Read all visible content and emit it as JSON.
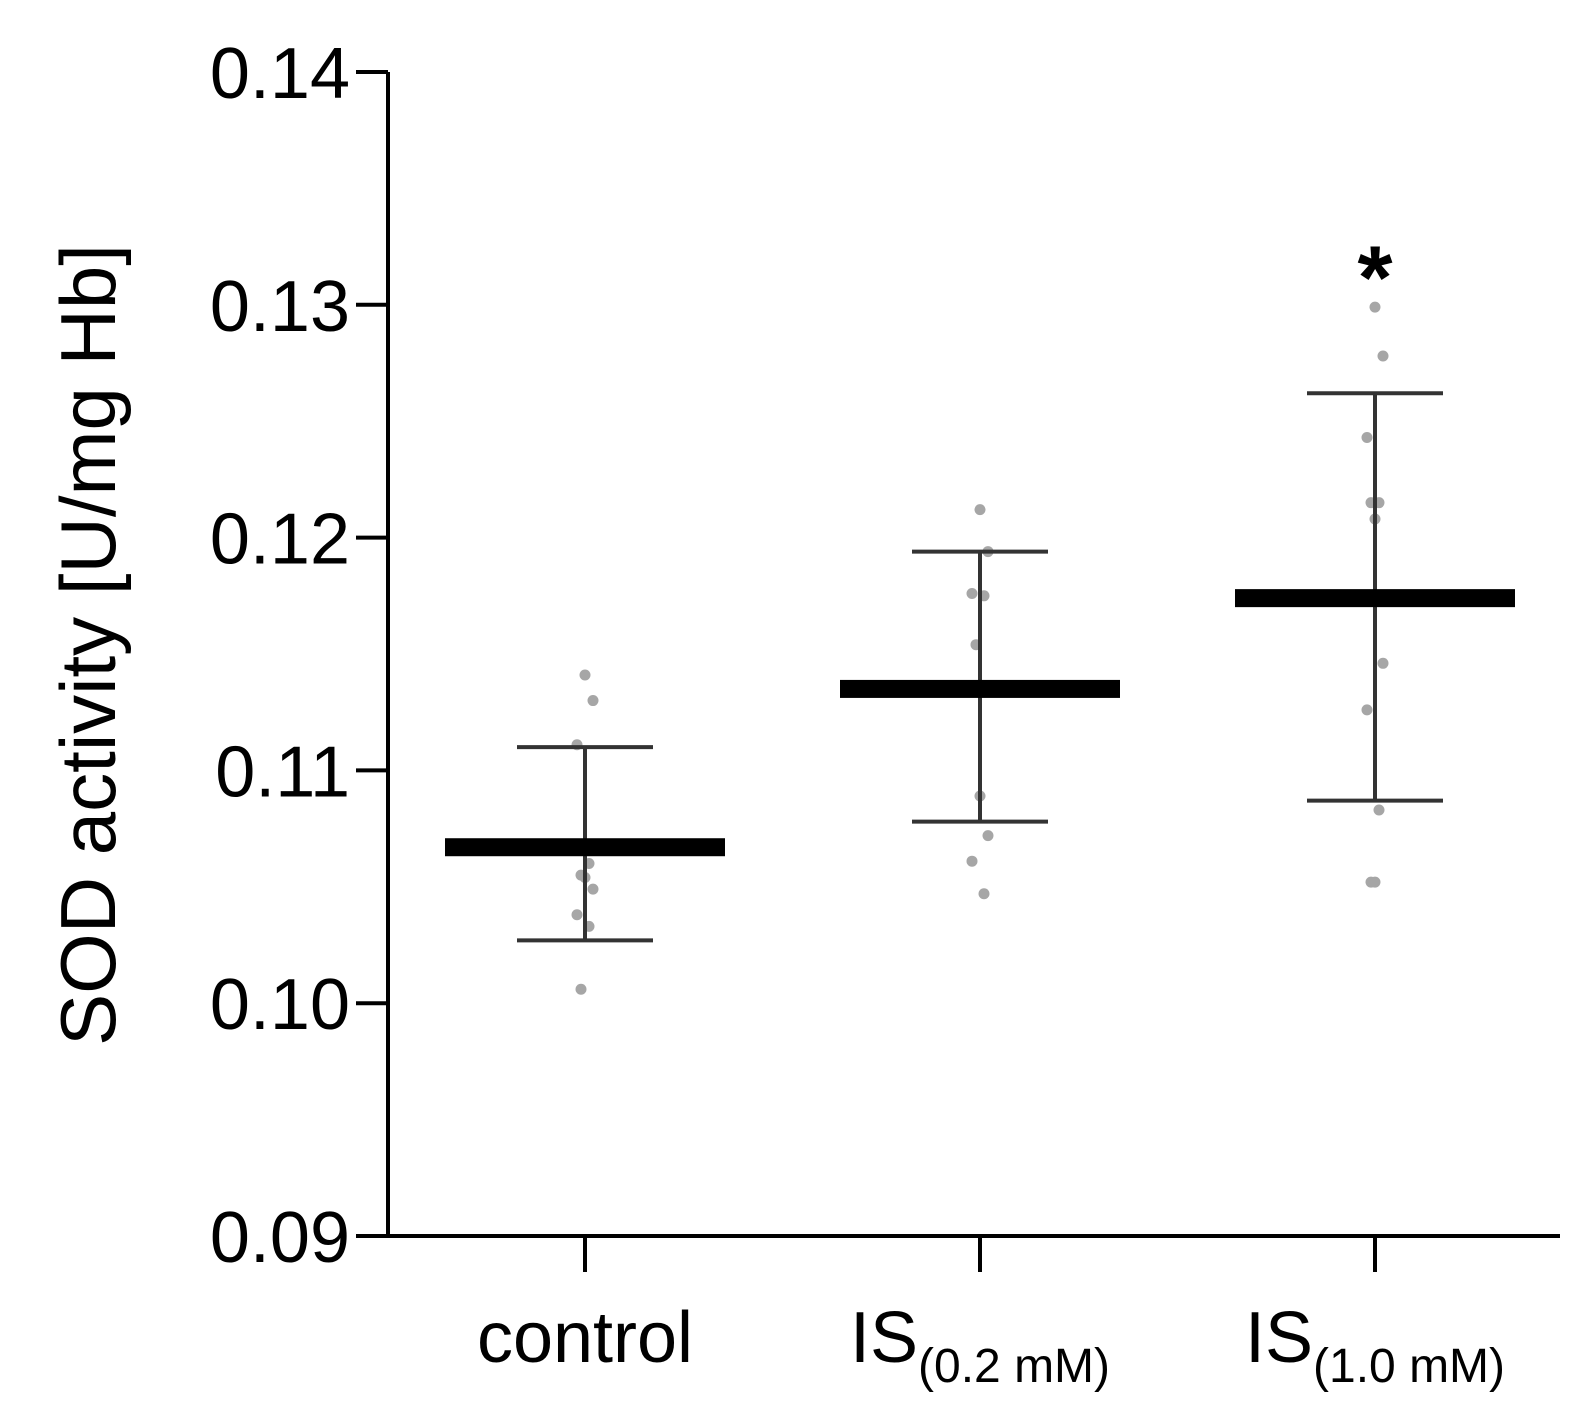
{
  "chart_data": {
    "type": "scatter",
    "title": "",
    "xlabel": "",
    "ylabel": "SOD activity [U/mg Hb]",
    "ylim": [
      0.09,
      0.14
    ],
    "yticks": [
      {
        "value": 0.09,
        "label": "0.09"
      },
      {
        "value": 0.1,
        "label": "0.10"
      },
      {
        "value": 0.11,
        "label": "0.11"
      },
      {
        "value": 0.12,
        "label": "0.12"
      },
      {
        "value": 0.13,
        "label": "0.13"
      },
      {
        "value": 0.14,
        "label": "0.14"
      }
    ],
    "groups": [
      {
        "name": "control",
        "label_main": "control",
        "label_sub": "",
        "mean": 0.1067,
        "sd_low": 0.1027,
        "sd_high": 0.111,
        "points": [
          0.1141,
          0.113,
          0.1111,
          0.106,
          0.1055,
          0.1054,
          0.1049,
          0.1038,
          0.1033,
          0.1006
        ],
        "significance": ""
      },
      {
        "name": "IS (0.2 mM)",
        "label_main": "IS",
        "label_sub": "(0.2 mM)",
        "mean": 0.1135,
        "sd_low": 0.1078,
        "sd_high": 0.1194,
        "points": [
          0.1212,
          0.1194,
          0.1176,
          0.1175,
          0.1154,
          0.1089,
          0.1072,
          0.1061,
          0.1047
        ],
        "significance": ""
      },
      {
        "name": "IS (1.0 mM)",
        "label_main": "IS",
        "label_sub": "(1.0 mM)",
        "mean": 0.1174,
        "sd_low": 0.1087,
        "sd_high": 0.1262,
        "points": [
          0.1299,
          0.1278,
          0.1243,
          0.1215,
          0.1215,
          0.1208,
          0.1146,
          0.1126,
          0.1083,
          0.1052,
          0.1052
        ],
        "significance": "*"
      }
    ]
  },
  "colors": {
    "axis": "#000000",
    "mean_bar": "#000000",
    "error_bar": "#333333",
    "points": "#a6a6a6",
    "text": "#000000"
  }
}
